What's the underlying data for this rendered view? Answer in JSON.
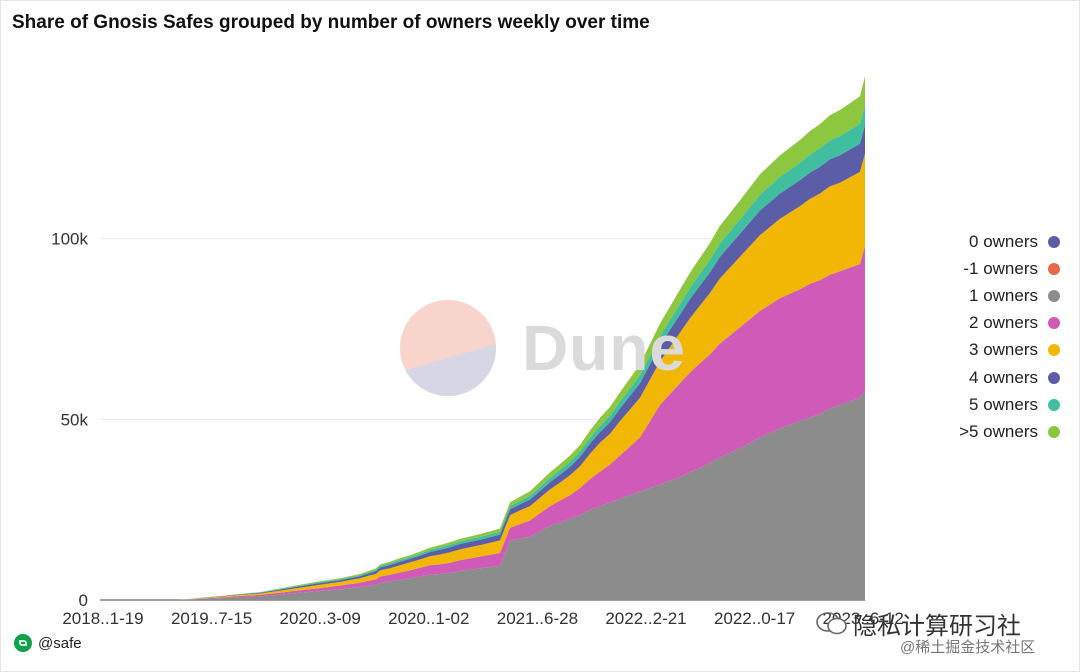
{
  "title": "Share of Gnosis Safes grouped by number of owners weekly over time",
  "footer": {
    "handle": "@safe",
    "icon": "safe-logo-icon"
  },
  "watermark": {
    "logo_text": "Dune"
  },
  "overlay": {
    "top": "隐私计算研习社",
    "bottom": "@稀土掘金技术社区"
  },
  "chart_data": {
    "type": "area",
    "stacked": true,
    "x_tick_labels": [
      "2018..1-19",
      "2019..7-15",
      "2020..3-09",
      "2020..1-02",
      "2021..6-28",
      "2022..2-21",
      "2022..0-17",
      "2023..6-12"
    ],
    "y_tick_labels": [
      "0",
      "50k",
      "100k"
    ],
    "y_ticks": [
      0,
      50000,
      100000
    ],
    "ylim": [
      0,
      150000
    ],
    "grid": true,
    "legend_position": "right",
    "x": [
      0,
      20,
      40,
      60,
      80,
      100,
      120,
      140,
      160,
      180,
      200,
      220,
      240,
      260,
      270,
      276,
      280,
      290,
      300,
      310,
      320,
      330,
      340,
      350,
      360,
      380,
      400,
      410,
      420,
      430,
      440,
      450,
      460,
      470,
      480,
      490,
      500,
      510,
      520,
      540,
      560,
      570,
      580,
      590,
      600,
      610,
      620,
      640,
      660,
      680,
      700,
      710,
      720,
      730,
      740,
      750,
      760,
      765
    ],
    "series": [
      {
        "name": "0 owners",
        "color": "#5b5ea6",
        "values": [
          0,
          0,
          0,
          0,
          0,
          0,
          0,
          0,
          0,
          0,
          0,
          0,
          0,
          0,
          0,
          0,
          0,
          0,
          0,
          0,
          0,
          0,
          0,
          0,
          0,
          0,
          0,
          0,
          0,
          0,
          0,
          0,
          0,
          0,
          0,
          0,
          0,
          0,
          0,
          0,
          0,
          0,
          0,
          0,
          0,
          0,
          0,
          0,
          0,
          0,
          0,
          0,
          0,
          0,
          0,
          0,
          0,
          0
        ]
      },
      {
        "name": "-1 owners",
        "color": "#e8684a",
        "values": [
          0,
          0,
          0,
          0,
          0,
          0,
          0,
          0,
          0,
          0,
          0,
          0,
          0,
          0,
          0,
          0,
          0,
          0,
          0,
          0,
          0,
          0,
          0,
          0,
          0,
          0,
          0,
          0,
          0,
          0,
          0,
          0,
          0,
          0,
          0,
          0,
          0,
          0,
          0,
          0,
          0,
          0,
          0,
          0,
          0,
          0,
          0,
          0,
          0,
          0,
          0,
          0,
          0,
          0,
          0,
          0,
          0,
          0
        ]
      },
      {
        "name": "1 owners",
        "color": "#8c8c8c",
        "values": [
          0,
          0,
          0,
          0,
          0,
          300,
          500,
          800,
          1000,
          1500,
          2000,
          2500,
          3000,
          3600,
          4000,
          4200,
          4800,
          5200,
          5600,
          6000,
          6500,
          7000,
          7200,
          7500,
          8000,
          8800,
          9500,
          16500,
          17000,
          17500,
          19000,
          20500,
          21500,
          22500,
          23500,
          25000,
          26000,
          27000,
          28000,
          30000,
          32000,
          33000,
          34000,
          35500,
          36500,
          38000,
          39500,
          42000,
          45000,
          47500,
          49500,
          50500,
          51500,
          53000,
          54000,
          55000,
          56000,
          58000
        ]
      },
      {
        "name": "2 owners",
        "color": "#cf5ab7",
        "values": [
          0,
          0,
          0,
          0,
          0,
          100,
          200,
          300,
          400,
          500,
          700,
          800,
          1000,
          1200,
          1400,
          1500,
          1700,
          1800,
          2000,
          2200,
          2400,
          2600,
          2700,
          2800,
          3000,
          3200,
          3500,
          3500,
          4000,
          4500,
          5000,
          5500,
          6000,
          6500,
          7500,
          8500,
          9500,
          10500,
          12000,
          15000,
          22000,
          24000,
          26000,
          27500,
          29000,
          30000,
          31500,
          33500,
          35000,
          36000,
          36500,
          37000,
          37000,
          37000,
          37000,
          37000,
          37000,
          40000
        ]
      },
      {
        "name": "3 owners",
        "color": "#f2b705",
        "values": [
          0,
          0,
          0,
          0,
          0,
          100,
          200,
          300,
          400,
          600,
          700,
          900,
          1000,
          1200,
          1400,
          1500,
          1700,
          1800,
          2000,
          2200,
          2300,
          2500,
          2700,
          2900,
          3000,
          3200,
          3500,
          3500,
          3800,
          4000,
          4300,
          4600,
          5000,
          5500,
          6000,
          7000,
          8000,
          8500,
          9500,
          11000,
          12000,
          13000,
          14000,
          15000,
          16000,
          17000,
          18000,
          19500,
          21000,
          22000,
          23000,
          23500,
          24000,
          24500,
          24500,
          25000,
          25500,
          25500
        ]
      },
      {
        "name": "4 owners",
        "color": "#5b5ea6",
        "values": [
          0,
          0,
          0,
          0,
          0,
          50,
          100,
          150,
          200,
          300,
          400,
          500,
          500,
          600,
          700,
          800,
          800,
          900,
          1000,
          1000,
          1100,
          1200,
          1300,
          1400,
          1500,
          1500,
          1600,
          1600,
          1700,
          1800,
          1900,
          2000,
          2200,
          2400,
          2600,
          2800,
          3000,
          3200,
          3500,
          4000,
          4500,
          4800,
          5000,
          5300,
          5500,
          5700,
          6000,
          6400,
          6800,
          7000,
          7200,
          7300,
          7400,
          7500,
          7600,
          7700,
          7800,
          8000
        ]
      },
      {
        "name": "5 owners",
        "color": "#3fbfa0",
        "values": [
          0,
          0,
          0,
          0,
          0,
          30,
          50,
          80,
          100,
          150,
          200,
          250,
          250,
          300,
          300,
          350,
          400,
          450,
          500,
          500,
          550,
          600,
          650,
          700,
          700,
          750,
          800,
          800,
          900,
          1000,
          1100,
          1200,
          1300,
          1400,
          1500,
          1600,
          1700,
          1800,
          1900,
          2200,
          2500,
          2700,
          2900,
          3100,
          3300,
          3500,
          3700,
          4000,
          4300,
          4600,
          4800,
          5000,
          5100,
          5200,
          5300,
          5400,
          5500,
          5500
        ]
      },
      {
        "name": ">5 owners",
        "color": "#8dc63f",
        "values": [
          0,
          0,
          0,
          0,
          0,
          20,
          50,
          70,
          100,
          150,
          200,
          250,
          250,
          300,
          400,
          400,
          400,
          450,
          500,
          500,
          550,
          600,
          650,
          700,
          700,
          800,
          900,
          1100,
          1200,
          1300,
          1400,
          1500,
          1600,
          1700,
          1800,
          2000,
          2200,
          2400,
          2600,
          3000,
          3500,
          3700,
          4000,
          4200,
          4400,
          4600,
          4900,
          5200,
          5700,
          6000,
          6300,
          6500,
          6700,
          7000,
          7200,
          7400,
          7600,
          8000
        ]
      }
    ]
  }
}
